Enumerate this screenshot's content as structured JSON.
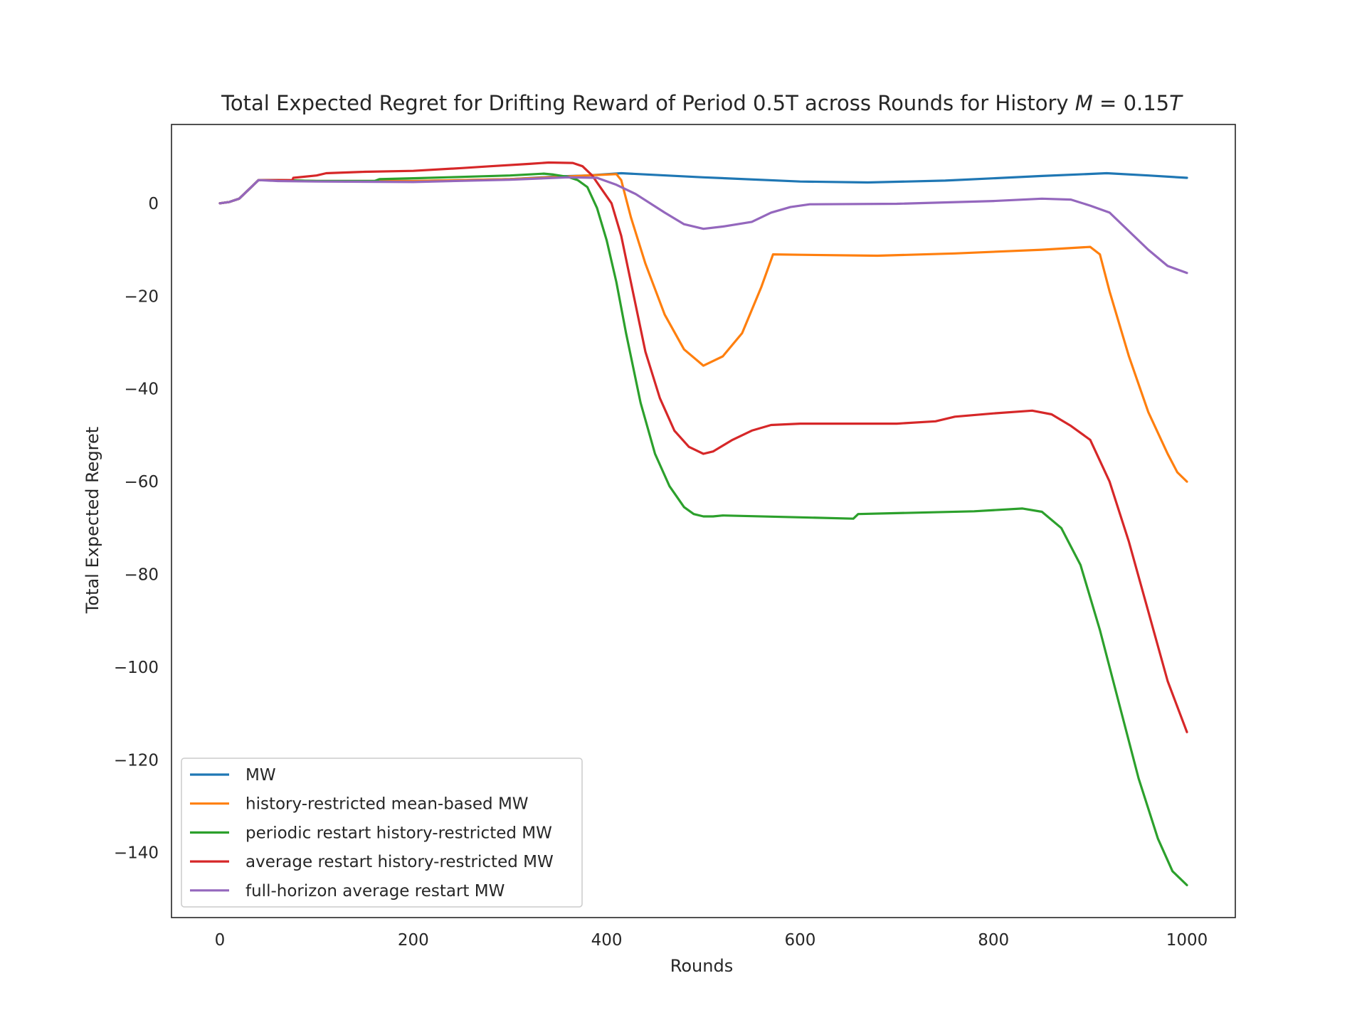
{
  "chart_data": {
    "type": "line",
    "title": "Total Expected Regret for Drifting Reward of Period 0.5T across Rounds for History ",
    "title_math_symbol": "M",
    "title_math_rest": " = 0.15",
    "title_math_suffix": "T",
    "xlabel": "Rounds",
    "ylabel": "Total Expected Regret",
    "xlim": [
      -50,
      1050
    ],
    "ylim": [
      -154,
      17
    ],
    "xticks": [
      0,
      200,
      400,
      600,
      800,
      1000
    ],
    "xtick_labels": [
      "0",
      "200",
      "400",
      "600",
      "800",
      "1000"
    ],
    "yticks": [
      0,
      -20,
      -40,
      -60,
      -80,
      -100,
      -120,
      -140
    ],
    "ytick_labels": [
      "0",
      "−20",
      "−40",
      "−60",
      "−80",
      "−100",
      "−120",
      "−140"
    ],
    "grid": false,
    "legend_position": "lower-left",
    "series": [
      {
        "name": "MW",
        "color": "#1f77b4",
        "points": [
          [
            0,
            0
          ],
          [
            10,
            0.3
          ],
          [
            20,
            1
          ],
          [
            30,
            3
          ],
          [
            40,
            5
          ],
          [
            60,
            5
          ],
          [
            100,
            4.8
          ],
          [
            200,
            4.8
          ],
          [
            300,
            5.2
          ],
          [
            350,
            5.8
          ],
          [
            380,
            6
          ],
          [
            415,
            6.5
          ],
          [
            500,
            5.6
          ],
          [
            600,
            4.7
          ],
          [
            670,
            4.5
          ],
          [
            750,
            4.9
          ],
          [
            850,
            5.9
          ],
          [
            917,
            6.5
          ],
          [
            960,
            6
          ],
          [
            1000,
            5.5
          ]
        ]
      },
      {
        "name": "history-restricted mean-based MW",
        "color": "#ff7f0e",
        "points": [
          [
            0,
            0
          ],
          [
            10,
            0.3
          ],
          [
            20,
            1
          ],
          [
            30,
            3
          ],
          [
            40,
            5
          ],
          [
            60,
            5
          ],
          [
            100,
            4.8
          ],
          [
            200,
            4.8
          ],
          [
            300,
            5.2
          ],
          [
            350,
            5.7
          ],
          [
            380,
            6
          ],
          [
            410,
            6.3
          ],
          [
            415,
            5
          ],
          [
            425,
            -3
          ],
          [
            440,
            -13
          ],
          [
            460,
            -24
          ],
          [
            480,
            -31.5
          ],
          [
            500,
            -35
          ],
          [
            520,
            -33
          ],
          [
            540,
            -28
          ],
          [
            560,
            -18
          ],
          [
            572,
            -11
          ],
          [
            600,
            -11.1
          ],
          [
            680,
            -11.3
          ],
          [
            760,
            -10.8
          ],
          [
            850,
            -10
          ],
          [
            900,
            -9.4
          ],
          [
            910,
            -11
          ],
          [
            920,
            -19
          ],
          [
            940,
            -33
          ],
          [
            960,
            -45
          ],
          [
            980,
            -54
          ],
          [
            990,
            -58
          ],
          [
            1000,
            -60
          ]
        ]
      },
      {
        "name": "periodic restart history-restricted MW",
        "color": "#2ca02c",
        "points": [
          [
            0,
            0
          ],
          [
            10,
            0.3
          ],
          [
            20,
            1
          ],
          [
            30,
            3
          ],
          [
            40,
            5
          ],
          [
            60,
            5
          ],
          [
            100,
            4.8
          ],
          [
            160,
            4.8
          ],
          [
            165,
            5.2
          ],
          [
            200,
            5.4
          ],
          [
            250,
            5.7
          ],
          [
            300,
            6
          ],
          [
            335,
            6.4
          ],
          [
            345,
            6.2
          ],
          [
            360,
            5.7
          ],
          [
            370,
            5
          ],
          [
            380,
            3.5
          ],
          [
            390,
            -1
          ],
          [
            400,
            -8
          ],
          [
            410,
            -17
          ],
          [
            420,
            -28
          ],
          [
            435,
            -43
          ],
          [
            450,
            -54
          ],
          [
            465,
            -61
          ],
          [
            480,
            -65.5
          ],
          [
            490,
            -67
          ],
          [
            500,
            -67.5
          ],
          [
            510,
            -67.5
          ],
          [
            520,
            -67.3
          ],
          [
            600,
            -67.7
          ],
          [
            655,
            -68
          ],
          [
            660,
            -67
          ],
          [
            700,
            -66.8
          ],
          [
            780,
            -66.4
          ],
          [
            830,
            -65.8
          ],
          [
            850,
            -66.5
          ],
          [
            870,
            -70
          ],
          [
            890,
            -78
          ],
          [
            910,
            -92
          ],
          [
            930,
            -108
          ],
          [
            950,
            -124
          ],
          [
            970,
            -137
          ],
          [
            985,
            -144
          ],
          [
            1000,
            -147
          ]
        ]
      },
      {
        "name": "average restart history-restricted MW",
        "color": "#d62728",
        "points": [
          [
            0,
            0
          ],
          [
            10,
            0.3
          ],
          [
            20,
            1
          ],
          [
            30,
            3
          ],
          [
            40,
            5
          ],
          [
            60,
            5
          ],
          [
            75,
            5
          ],
          [
            76,
            5.5
          ],
          [
            100,
            6
          ],
          [
            110,
            6.5
          ],
          [
            150,
            6.8
          ],
          [
            200,
            7
          ],
          [
            250,
            7.6
          ],
          [
            280,
            8
          ],
          [
            320,
            8.5
          ],
          [
            340,
            8.8
          ],
          [
            365,
            8.7
          ],
          [
            375,
            8
          ],
          [
            385,
            6
          ],
          [
            395,
            3
          ],
          [
            405,
            0
          ],
          [
            415,
            -7
          ],
          [
            425,
            -17
          ],
          [
            440,
            -32
          ],
          [
            455,
            -42
          ],
          [
            470,
            -49
          ],
          [
            485,
            -52.5
          ],
          [
            500,
            -54
          ],
          [
            510,
            -53.5
          ],
          [
            530,
            -51
          ],
          [
            550,
            -49
          ],
          [
            570,
            -47.8
          ],
          [
            600,
            -47.5
          ],
          [
            700,
            -47.5
          ],
          [
            740,
            -47
          ],
          [
            760,
            -46
          ],
          [
            800,
            -45.3
          ],
          [
            840,
            -44.7
          ],
          [
            860,
            -45.5
          ],
          [
            880,
            -48
          ],
          [
            900,
            -51
          ],
          [
            920,
            -60
          ],
          [
            940,
            -73
          ],
          [
            960,
            -88
          ],
          [
            980,
            -103
          ],
          [
            1000,
            -114
          ]
        ]
      },
      {
        "name": "full-horizon average restart MW",
        "color": "#9467bd",
        "points": [
          [
            0,
            0
          ],
          [
            10,
            0.3
          ],
          [
            20,
            1
          ],
          [
            30,
            3
          ],
          [
            40,
            5
          ],
          [
            60,
            4.8
          ],
          [
            100,
            4.7
          ],
          [
            200,
            4.6
          ],
          [
            300,
            5.1
          ],
          [
            360,
            5.6
          ],
          [
            390,
            5.5
          ],
          [
            410,
            4
          ],
          [
            430,
            2
          ],
          [
            460,
            -2
          ],
          [
            480,
            -4.5
          ],
          [
            500,
            -5.5
          ],
          [
            520,
            -5
          ],
          [
            550,
            -4
          ],
          [
            570,
            -2
          ],
          [
            590,
            -0.8
          ],
          [
            610,
            -0.2
          ],
          [
            700,
            -0.1
          ],
          [
            800,
            0.5
          ],
          [
            850,
            1
          ],
          [
            880,
            0.8
          ],
          [
            900,
            -0.5
          ],
          [
            920,
            -2
          ],
          [
            940,
            -6
          ],
          [
            960,
            -10
          ],
          [
            980,
            -13.5
          ],
          [
            1000,
            -15
          ]
        ]
      }
    ]
  }
}
